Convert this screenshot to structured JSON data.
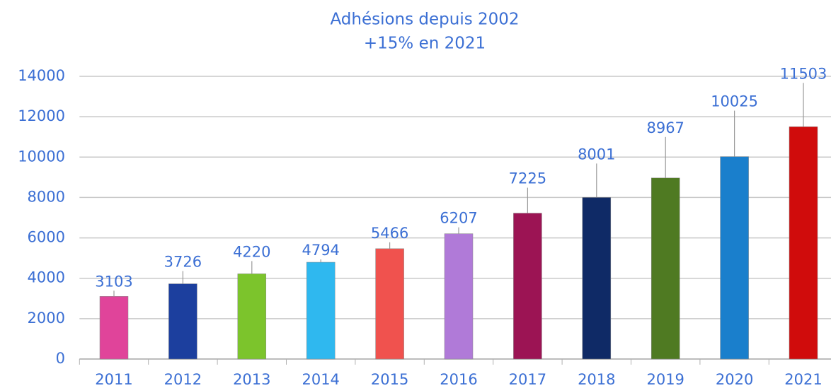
{
  "chart_data": {
    "type": "bar",
    "title": "Adhésions depuis 2002",
    "subtitle": "+15% en 2021",
    "categories": [
      "2011",
      "2012",
      "2013",
      "2014",
      "2015",
      "2016",
      "2017",
      "2018",
      "2019",
      "2020",
      "2021"
    ],
    "values": [
      3103,
      3726,
      4220,
      4794,
      5466,
      6207,
      7225,
      8001,
      8967,
      10025,
      11503
    ],
    "colors": [
      "#e0449a",
      "#1c3f9e",
      "#7cc42c",
      "#2fb8ef",
      "#f0524e",
      "#b07ad8",
      "#9c1454",
      "#0f2a66",
      "#4f7a22",
      "#1a7fcc",
      "#d00c0c"
    ],
    "ylim": [
      0,
      14000
    ],
    "yticks": [
      0,
      2000,
      4000,
      6000,
      8000,
      10000,
      12000,
      14000
    ],
    "grid": true
  }
}
